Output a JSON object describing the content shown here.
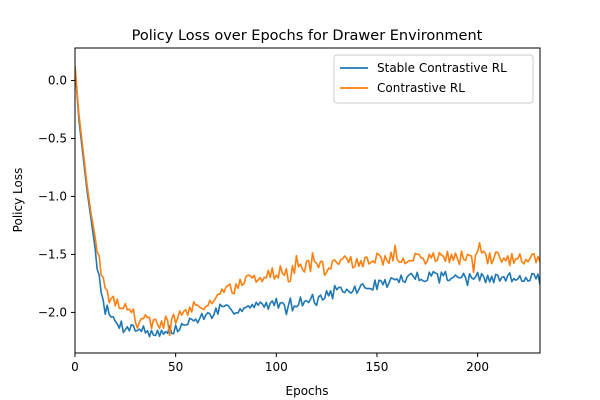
{
  "chart_data": {
    "type": "line",
    "title": "Policy Loss over Epochs for Drawer Environment",
    "xlabel": "Epochs",
    "ylabel": "Policy Loss",
    "xlim": [
      0,
      231
    ],
    "ylim": [
      -2.35,
      0.28
    ],
    "x_ticks": [
      0,
      50,
      100,
      150,
      200
    ],
    "x_tick_labels": [
      "0",
      "50",
      "100",
      "150",
      "200"
    ],
    "y_ticks": [
      0.0,
      -0.5,
      -1.0,
      -1.5,
      -2.0
    ],
    "y_tick_labels": [
      "0.0",
      "−0.5",
      "−1.0",
      "−1.5",
      "−2.0"
    ],
    "grid": false,
    "legend_position": "top-right",
    "x_step": 1,
    "series": [
      {
        "name": "Stable Contrastive RL",
        "color": "#1f77b4",
        "anchors": [
          [
            0,
            0.12
          ],
          [
            2,
            -0.35
          ],
          [
            4,
            -0.65
          ],
          [
            6,
            -0.95
          ],
          [
            8,
            -1.2
          ],
          [
            10,
            -1.45
          ],
          [
            12,
            -1.7
          ],
          [
            14,
            -1.88
          ],
          [
            16,
            -1.98
          ],
          [
            18,
            -2.05
          ],
          [
            22,
            -2.1
          ],
          [
            26,
            -2.12
          ],
          [
            30,
            -2.14
          ],
          [
            34,
            -2.15
          ],
          [
            40,
            -2.17
          ],
          [
            46,
            -2.18
          ],
          [
            50,
            -2.15
          ],
          [
            55,
            -2.1
          ],
          [
            60,
            -2.06
          ],
          [
            65,
            -2.03
          ],
          [
            70,
            -2.0
          ],
          [
            75,
            -1.98
          ],
          [
            80,
            -1.97
          ],
          [
            85,
            -1.96
          ],
          [
            90,
            -1.95
          ],
          [
            95,
            -1.93
          ],
          [
            100,
            -1.92
          ],
          [
            105,
            -1.92
          ],
          [
            110,
            -1.91
          ],
          [
            115,
            -1.9
          ],
          [
            120,
            -1.88
          ],
          [
            125,
            -1.85
          ],
          [
            130,
            -1.83
          ],
          [
            135,
            -1.82
          ],
          [
            140,
            -1.8
          ],
          [
            145,
            -1.78
          ],
          [
            150,
            -1.76
          ],
          [
            155,
            -1.74
          ],
          [
            160,
            -1.72
          ],
          [
            165,
            -1.71
          ],
          [
            170,
            -1.7
          ],
          [
            175,
            -1.68
          ],
          [
            180,
            -1.67
          ],
          [
            185,
            -1.68
          ],
          [
            190,
            -1.69
          ],
          [
            195,
            -1.7
          ],
          [
            200,
            -1.7
          ],
          [
            205,
            -1.71
          ],
          [
            210,
            -1.71
          ],
          [
            215,
            -1.7
          ],
          [
            220,
            -1.7
          ],
          [
            225,
            -1.69
          ],
          [
            231,
            -1.68
          ]
        ],
        "noise_amp": 0.045,
        "seed": 7
      },
      {
        "name": "Contrastive RL",
        "color": "#ff7f0e",
        "anchors": [
          [
            0,
            0.12
          ],
          [
            2,
            -0.3
          ],
          [
            4,
            -0.6
          ],
          [
            6,
            -0.9
          ],
          [
            8,
            -1.15
          ],
          [
            10,
            -1.35
          ],
          [
            12,
            -1.55
          ],
          [
            14,
            -1.7
          ],
          [
            16,
            -1.8
          ],
          [
            18,
            -1.86
          ],
          [
            22,
            -1.92
          ],
          [
            26,
            -1.98
          ],
          [
            30,
            -2.03
          ],
          [
            34,
            -2.07
          ],
          [
            40,
            -2.1
          ],
          [
            46,
            -2.08
          ],
          [
            50,
            -2.04
          ],
          [
            55,
            -2.0
          ],
          [
            60,
            -1.96
          ],
          [
            65,
            -1.92
          ],
          [
            70,
            -1.87
          ],
          [
            75,
            -1.82
          ],
          [
            80,
            -1.78
          ],
          [
            85,
            -1.74
          ],
          [
            90,
            -1.71
          ],
          [
            95,
            -1.68
          ],
          [
            100,
            -1.66
          ],
          [
            105,
            -1.64
          ],
          [
            110,
            -1.62
          ],
          [
            115,
            -1.61
          ],
          [
            120,
            -1.6
          ],
          [
            125,
            -1.59
          ],
          [
            130,
            -1.58
          ],
          [
            135,
            -1.57
          ],
          [
            140,
            -1.56
          ],
          [
            145,
            -1.55
          ],
          [
            150,
            -1.55
          ],
          [
            155,
            -1.54
          ],
          [
            160,
            -1.54
          ],
          [
            165,
            -1.54
          ],
          [
            170,
            -1.53
          ],
          [
            175,
            -1.53
          ],
          [
            180,
            -1.53
          ],
          [
            185,
            -1.52
          ],
          [
            190,
            -1.53
          ],
          [
            195,
            -1.53
          ],
          [
            200,
            -1.53
          ],
          [
            205,
            -1.53
          ],
          [
            210,
            -1.54
          ],
          [
            215,
            -1.54
          ],
          [
            220,
            -1.53
          ],
          [
            225,
            -1.52
          ],
          [
            231,
            -1.48
          ]
        ],
        "noise_amp": 0.06,
        "seed": 19
      }
    ]
  }
}
